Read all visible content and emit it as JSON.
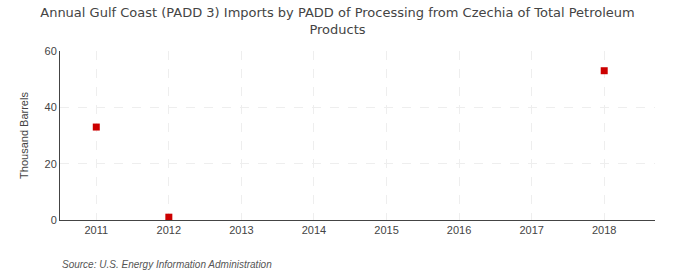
{
  "chart_data": {
    "type": "scatter",
    "title": "Annual Gulf Coast (PADD 3) Imports by PADD of Processing from Czechia of Total Petroleum\nProducts",
    "ylabel": "Thousand Barrels",
    "source": "Source: U.S. Energy Information Administration",
    "x": [
      2011,
      2012,
      2013,
      2014,
      2015,
      2016,
      2017,
      2018
    ],
    "values": [
      33,
      1,
      null,
      null,
      null,
      null,
      null,
      53
    ],
    "color": "#cc0000",
    "marker": "square",
    "xlim": [
      2010.5,
      2018.7
    ],
    "xticks": [
      2011,
      2012,
      2013,
      2014,
      2015,
      2016,
      2017,
      2018
    ],
    "ylim": [
      0,
      60
    ],
    "yticks": [
      0,
      20,
      40,
      60
    ],
    "grid": true
  }
}
